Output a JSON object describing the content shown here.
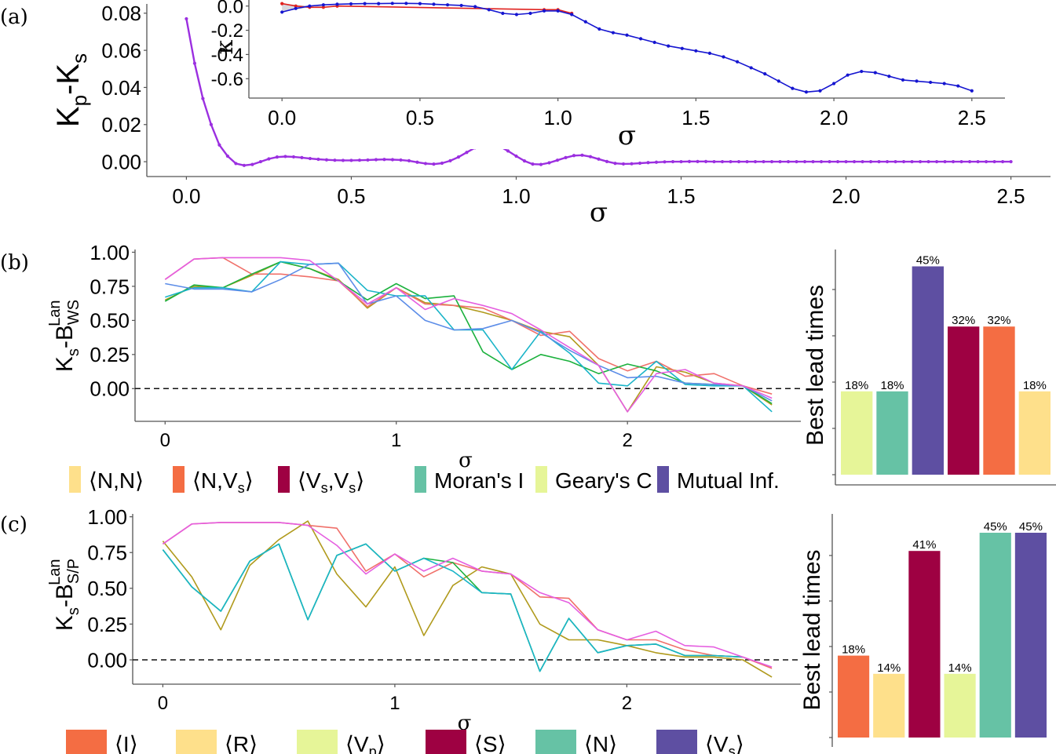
{
  "panel_labels": [
    "(a)",
    "(b)",
    "(c)"
  ],
  "chart_data": [
    {
      "id": "a_main",
      "type": "line",
      "title": "",
      "xlabel": "σ",
      "ylabel": "Kp-Ks",
      "ylabel_main": "K",
      "ylabel_sub1": "p",
      "ylabel_mid": "-K",
      "ylabel_sub2": "s",
      "xlim": [
        -0.12,
        2.62
      ],
      "ylim": [
        -0.008,
        0.085
      ],
      "xticks": [
        0.0,
        0.5,
        1.0,
        1.5,
        2.0,
        2.5
      ],
      "xtick_labels": [
        "0.0",
        "0.5",
        "1.0",
        "1.5",
        "2.0",
        "2.5"
      ],
      "yticks": [
        0.0,
        0.02,
        0.04,
        0.06,
        0.08
      ],
      "ytick_labels": [
        "0.00",
        "0.02",
        "0.04",
        "0.06",
        "0.08"
      ],
      "series": [
        {
          "name": "Kp-Ks",
          "color": "#9b2fe0",
          "markers": true,
          "x": [
            0.0,
            0.025,
            0.05,
            0.075,
            0.1,
            0.125,
            0.15,
            0.175,
            0.2,
            0.225,
            0.25,
            0.275,
            0.3,
            0.325,
            0.35,
            0.375,
            0.4,
            0.425,
            0.45,
            0.475,
            0.5,
            0.525,
            0.55,
            0.575,
            0.6,
            0.625,
            0.65,
            0.675,
            0.7,
            0.725,
            0.75,
            0.775,
            0.8,
            0.825,
            0.85,
            0.875,
            0.9,
            0.925,
            0.95,
            0.975,
            1.0,
            1.025,
            1.05,
            1.075,
            1.1,
            1.125,
            1.15,
            1.175,
            1.2,
            1.225,
            1.25,
            1.275,
            1.3,
            1.325,
            1.35,
            1.375,
            1.4,
            1.425,
            1.45,
            1.475,
            1.5,
            1.525,
            1.55,
            1.575,
            1.6,
            1.625,
            1.65,
            1.675,
            1.7,
            1.725,
            1.75,
            1.775,
            1.8,
            1.825,
            1.85,
            1.875,
            1.9,
            1.925,
            1.95,
            1.975,
            2.0,
            2.025,
            2.05,
            2.075,
            2.1,
            2.125,
            2.15,
            2.175,
            2.2,
            2.225,
            2.25,
            2.275,
            2.3,
            2.325,
            2.35,
            2.375,
            2.4,
            2.425,
            2.45,
            2.475,
            2.5
          ],
          "y": [
            0.077,
            0.053,
            0.034,
            0.02,
            0.009,
            0.003,
            -0.001,
            -0.002,
            -0.0015,
            0.0,
            0.0015,
            0.0025,
            0.0028,
            0.0026,
            0.0022,
            0.0017,
            0.0013,
            0.001,
            0.0008,
            0.0007,
            0.0007,
            0.0008,
            0.0009,
            0.0011,
            0.0012,
            0.0011,
            0.0009,
            0.0005,
            -0.0003,
            -0.001,
            -0.0013,
            -0.0008,
            0.0005,
            0.0025,
            0.005,
            0.0075,
            0.0092,
            0.0095,
            0.0083,
            0.0058,
            0.003,
            0.0004,
            -0.0013,
            -0.0015,
            -0.0006,
            0.0008,
            0.0022,
            0.0033,
            0.0035,
            0.0027,
            0.0014,
            0.0001,
            -0.0009,
            -0.0012,
            -0.0011,
            -0.0008,
            -0.0005,
            -0.0003,
            -0.0001,
            0.0,
            0.0,
            0.0001,
            0.0001,
            0.0001,
            0.0,
            0.0,
            0.0,
            0.0,
            0.0,
            0.0,
            0.0,
            0.0,
            0.0,
            0.0,
            0.0,
            0.0,
            0.0,
            0.0,
            0.0,
            0.0,
            0.0,
            0.0,
            0.0,
            0.0,
            0.0,
            0.0,
            0.0,
            0.0,
            0.0,
            0.0,
            0.0,
            0.0,
            0.0,
            0.0,
            0.0,
            0.0,
            0.0,
            0.0,
            0.0,
            0.0,
            0.0
          ]
        }
      ]
    },
    {
      "id": "a_inset",
      "type": "line",
      "title": "",
      "xlabel": "σ",
      "ylabel": "κ",
      "xlim": [
        -0.12,
        2.62
      ],
      "ylim": [
        -0.76,
        0.05
      ],
      "xticks": [
        0.0,
        0.5,
        1.0,
        1.5,
        2.0,
        2.5
      ],
      "xtick_labels": [
        "0.0",
        "0.5",
        "1.0",
        "1.5",
        "2.0",
        "2.5"
      ],
      "yticks": [
        0.0,
        -0.2,
        -0.4,
        -0.6
      ],
      "ytick_labels": [
        "0.0",
        "-0.2",
        "-0.4",
        "-0.6"
      ],
      "series": [
        {
          "name": "κ (red)",
          "color": "#e0221f",
          "markers": true,
          "x": [
            0.0,
            0.05,
            0.1,
            0.15,
            0.2,
            0.95,
            1.0,
            1.05
          ],
          "y": [
            0.02,
            0.0,
            -0.01,
            -0.01,
            0.0,
            -0.03,
            -0.03,
            -0.06
          ]
        },
        {
          "name": "κ (blue)",
          "color": "#1515d0",
          "markers": true,
          "x": [
            0.0,
            0.05,
            0.1,
            0.15,
            0.2,
            0.25,
            0.3,
            0.35,
            0.4,
            0.45,
            0.5,
            0.55,
            0.6,
            0.65,
            0.7,
            0.75,
            0.8,
            0.85,
            0.9,
            0.95,
            1.0,
            1.05,
            1.1,
            1.15,
            1.2,
            1.25,
            1.3,
            1.35,
            1.4,
            1.45,
            1.5,
            1.55,
            1.6,
            1.65,
            1.7,
            1.75,
            1.8,
            1.85,
            1.9,
            1.95,
            2.0,
            2.05,
            2.1,
            2.15,
            2.2,
            2.25,
            2.3,
            2.35,
            2.4,
            2.45,
            2.5
          ],
          "y": [
            -0.05,
            -0.02,
            0.0,
            0.01,
            0.015,
            0.018,
            0.02,
            0.02,
            0.022,
            0.022,
            0.02,
            0.015,
            0.01,
            0.005,
            -0.005,
            -0.03,
            -0.06,
            -0.07,
            -0.06,
            -0.04,
            -0.04,
            -0.07,
            -0.13,
            -0.19,
            -0.22,
            -0.24,
            -0.27,
            -0.3,
            -0.33,
            -0.35,
            -0.37,
            -0.39,
            -0.42,
            -0.46,
            -0.51,
            -0.56,
            -0.62,
            -0.68,
            -0.71,
            -0.7,
            -0.64,
            -0.57,
            -0.54,
            -0.55,
            -0.58,
            -0.61,
            -0.62,
            -0.63,
            -0.64,
            -0.66,
            -0.7
          ]
        }
      ]
    },
    {
      "id": "b_lines",
      "type": "line",
      "title": "",
      "xlabel": "σ",
      "ylabel": "Ks-B_WS^Lan",
      "ylabel_main": "K",
      "ylabel_sub1": "s",
      "ylabel_mid": "-B",
      "ylabel_sub2": "WS",
      "ylabel_sup2": "Lan",
      "xlim": [
        -0.13,
        2.75
      ],
      "ylim": [
        -0.24,
        1.02
      ],
      "xticks": [
        0,
        1,
        2
      ],
      "xtick_labels": [
        "0",
        "1",
        "2"
      ],
      "yticks": [
        0.0,
        0.25,
        0.5,
        0.75,
        1.0
      ],
      "ytick_labels": [
        "0.00",
        "0.25",
        "0.50",
        "0.75",
        "1.00"
      ],
      "hline": 0,
      "x": [
        0.0,
        0.125,
        0.25,
        0.375,
        0.5,
        0.625,
        0.75,
        0.875,
        1.0,
        1.125,
        1.25,
        1.375,
        1.5,
        1.625,
        1.75,
        1.875,
        2.0,
        2.125,
        2.25,
        2.375,
        2.5,
        2.625
      ],
      "series": [
        {
          "name": "olive",
          "color": "#b09a1c",
          "y": [
            0.65,
            0.75,
            0.74,
            0.83,
            0.93,
            0.88,
            0.8,
            0.59,
            0.74,
            0.63,
            0.61,
            0.56,
            0.5,
            0.42,
            0.38,
            0.17,
            -0.17,
            0.16,
            0.12,
            0.04,
            0.02,
            -0.12
          ]
        },
        {
          "name": "red",
          "color": "#f0706a",
          "y": [
            0.8,
            0.95,
            0.96,
            0.84,
            0.84,
            0.82,
            0.79,
            0.6,
            0.74,
            0.62,
            0.61,
            0.59,
            0.5,
            0.39,
            0.42,
            0.22,
            0.13,
            0.2,
            0.09,
            0.11,
            0.02,
            -0.04
          ]
        },
        {
          "name": "green",
          "color": "#1bb13d",
          "y": [
            0.64,
            0.76,
            0.74,
            0.84,
            0.93,
            0.88,
            0.79,
            0.65,
            0.77,
            0.66,
            0.68,
            0.27,
            0.14,
            0.25,
            0.2,
            0.11,
            0.18,
            0.13,
            0.04,
            0.03,
            0.02,
            -0.11
          ]
        },
        {
          "name": "cyan",
          "color": "#1ab4c8",
          "y": [
            0.67,
            0.74,
            0.74,
            0.71,
            0.93,
            0.91,
            0.92,
            0.72,
            0.68,
            0.68,
            0.43,
            0.43,
            0.14,
            0.42,
            0.26,
            0.04,
            0.02,
            0.2,
            0.03,
            0.02,
            0.02,
            -0.17
          ]
        },
        {
          "name": "blue",
          "color": "#5c8de8",
          "y": [
            0.77,
            0.73,
            0.73,
            0.71,
            0.8,
            0.91,
            0.92,
            0.62,
            0.68,
            0.5,
            0.43,
            0.44,
            0.5,
            0.41,
            0.28,
            0.17,
            0.08,
            0.09,
            0.04,
            0.03,
            0.02,
            -0.09
          ]
        },
        {
          "name": "magenta",
          "color": "#e55ee0",
          "y": [
            0.8,
            0.95,
            0.96,
            0.96,
            0.96,
            0.94,
            0.79,
            0.62,
            0.74,
            0.58,
            0.66,
            0.61,
            0.55,
            0.43,
            0.3,
            0.17,
            -0.17,
            0.11,
            0.14,
            0.04,
            0.02,
            -0.07
          ]
        }
      ]
    },
    {
      "id": "b_bars",
      "type": "bar",
      "title": "",
      "xlabel": "",
      "ylabel": "Best lead times",
      "ylim": [
        0,
        0.5
      ],
      "categories": [
        "Geary's C",
        "Moran's I",
        "Mutual Inf.",
        "<Vs,Vs>",
        "<N,Vs>",
        "<N,N>"
      ],
      "values": [
        0.18,
        0.18,
        0.45,
        0.32,
        0.32,
        0.18
      ],
      "value_labels": [
        "18%",
        "18%",
        "45%",
        "32%",
        "32%",
        "18%"
      ],
      "colors": [
        "#e6f598",
        "#66c2a5",
        "#5e4fa2",
        "#9e0142",
        "#f46d43",
        "#fee08b"
      ]
    },
    {
      "id": "c_lines",
      "type": "line",
      "title": "",
      "xlabel": "σ",
      "ylabel": "Ks-B_S/P^Lan",
      "ylabel_main": "K",
      "ylabel_sub1": "s",
      "ylabel_mid": "-B",
      "ylabel_sub2": "S/P",
      "ylabel_sup2": "Lan",
      "xlim": [
        -0.13,
        2.75
      ],
      "ylim": [
        -0.17,
        1.02
      ],
      "xticks": [
        0,
        1,
        2
      ],
      "xtick_labels": [
        "0",
        "1",
        "2"
      ],
      "yticks": [
        0.0,
        0.25,
        0.5,
        0.75,
        1.0
      ],
      "ytick_labels": [
        "0.00",
        "0.25",
        "0.50",
        "0.75",
        "1.00"
      ],
      "hline": 0,
      "x": [
        0.0,
        0.125,
        0.25,
        0.375,
        0.5,
        0.625,
        0.75,
        0.875,
        1.0,
        1.125,
        1.25,
        1.375,
        1.5,
        1.625,
        1.75,
        1.875,
        2.0,
        2.125,
        2.25,
        2.375,
        2.5,
        2.625
      ],
      "series": [
        {
          "name": "olive",
          "color": "#b09a1c",
          "y": [
            0.83,
            0.58,
            0.21,
            0.66,
            0.84,
            0.97,
            0.6,
            0.37,
            0.65,
            0.17,
            0.52,
            0.65,
            0.6,
            0.25,
            0.14,
            0.14,
            0.1,
            0.05,
            0.02,
            0.02,
            0.0,
            -0.12
          ]
        },
        {
          "name": "red",
          "color": "#f0706a",
          "y": [
            0.81,
            0.95,
            0.96,
            0.96,
            0.96,
            0.94,
            0.92,
            0.62,
            0.74,
            0.58,
            0.68,
            0.62,
            0.6,
            0.44,
            0.43,
            0.21,
            0.14,
            0.14,
            0.07,
            0.03,
            0.02,
            -0.06
          ]
        },
        {
          "name": "green",
          "color": "#1bb13d",
          "y": [
            0.77,
            0.51,
            0.34,
            0.69,
            0.81,
            0.28,
            0.73,
            0.81,
            0.62,
            0.71,
            0.68,
            0.47,
            0.46,
            -0.08,
            0.29,
            0.05,
            0.1,
            0.11,
            0.03,
            0.03,
            0.02,
            null
          ]
        },
        {
          "name": "cyan",
          "color": "#1ab4c8",
          "y": [
            0.77,
            0.51,
            0.34,
            0.69,
            0.81,
            0.28,
            0.73,
            0.81,
            0.62,
            0.71,
            0.62,
            0.47,
            0.46,
            -0.08,
            0.29,
            0.05,
            0.1,
            0.11,
            0.03,
            0.03,
            0.02,
            null
          ]
        },
        {
          "name": "magenta",
          "color": "#e55ee0",
          "y": [
            0.81,
            0.95,
            0.96,
            0.96,
            0.96,
            0.94,
            0.8,
            0.6,
            0.74,
            0.62,
            0.71,
            0.62,
            0.6,
            0.47,
            0.4,
            0.21,
            0.14,
            0.2,
            0.1,
            0.09,
            0.02,
            -0.05
          ]
        }
      ]
    },
    {
      "id": "c_bars",
      "type": "bar",
      "title": "",
      "xlabel": "",
      "ylabel": "Best lead times",
      "ylim": [
        0,
        0.5
      ],
      "categories": [
        "<I>",
        "<R>",
        "<S>",
        "<Vp>",
        "<N>",
        "<Vs>"
      ],
      "values": [
        0.18,
        0.14,
        0.41,
        0.14,
        0.45,
        0.45
      ],
      "value_labels": [
        "18%",
        "14%",
        "41%",
        "14%",
        "45%",
        "45%"
      ],
      "colors": [
        "#f46d43",
        "#fee08b",
        "#9e0142",
        "#e6f598",
        "#66c2a5",
        "#5e4fa2"
      ]
    }
  ],
  "legend_b": [
    {
      "label": "⟨N,N⟩",
      "main": "⟨N,N⟩",
      "color": "#fee08b"
    },
    {
      "label": "⟨N,Vs⟩",
      "main": "⟨N,V",
      "sub": "s",
      "end": "⟩",
      "color": "#f46d43"
    },
    {
      "label": "⟨Vs,Vs⟩",
      "main": "⟨V",
      "sub": "s",
      "mid": ",V",
      "sub2": "s",
      "end": "⟩",
      "color": "#9e0142"
    },
    {
      "label": "Moran's I",
      "main": "Moran's I",
      "color": "#66c2a5"
    },
    {
      "label": "Geary's C",
      "main": "Geary's C",
      "color": "#e6f598"
    },
    {
      "label": "Mutual Inf.",
      "main": "Mutual Inf.",
      "color": "#5e4fa2"
    }
  ],
  "legend_c": [
    {
      "label": "⟨I⟩",
      "main": "⟨I⟩",
      "color": "#f46d43"
    },
    {
      "label": "⟨R⟩",
      "main": "⟨R⟩",
      "color": "#fee08b"
    },
    {
      "label": "⟨Vp⟩",
      "main": "⟨V",
      "sub": "p",
      "end": "⟩",
      "color": "#e6f598"
    },
    {
      "label": "⟨S⟩",
      "main": "⟨S⟩",
      "color": "#9e0142"
    },
    {
      "label": "⟨N⟩",
      "main": "⟨N⟩",
      "color": "#66c2a5"
    },
    {
      "label": "⟨Vs⟩",
      "main": "⟨V",
      "sub": "s",
      "end": "⟩",
      "color": "#5e4fa2"
    }
  ]
}
